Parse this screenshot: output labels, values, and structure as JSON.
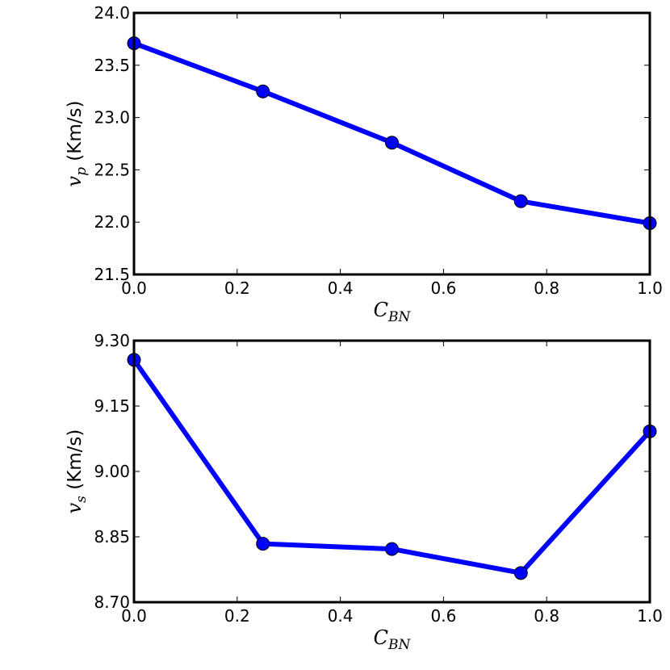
{
  "chart_data": [
    {
      "type": "line",
      "x": [
        0.0,
        0.25,
        0.5,
        0.75,
        1.0
      ],
      "series": [
        {
          "values": [
            23.71,
            23.25,
            22.76,
            22.2,
            21.99
          ],
          "color": "#0000ff"
        }
      ],
      "xlim": [
        0.0,
        1.0
      ],
      "ylim": [
        21.5,
        24.0
      ],
      "xticks": [
        "0.0",
        "0.2",
        "0.4",
        "0.6",
        "0.8",
        "1.0"
      ],
      "yticks": [
        "21.5",
        "22.0",
        "22.5",
        "23.0",
        "23.5",
        "24.0"
      ],
      "xlabel": {
        "main": "C",
        "sub": "BN"
      },
      "ylabel": {
        "main": "v",
        "sub": "p",
        "unit": "(Km/s)"
      },
      "grid": false
    },
    {
      "type": "line",
      "x": [
        0.0,
        0.25,
        0.5,
        0.75,
        1.0
      ],
      "series": [
        {
          "values": [
            9.256,
            8.834,
            8.822,
            8.767,
            9.092
          ],
          "color": "#0000ff"
        }
      ],
      "xlim": [
        0.0,
        1.0
      ],
      "ylim": [
        8.7,
        9.3
      ],
      "xticks": [
        "0.0",
        "0.2",
        "0.4",
        "0.6",
        "0.8",
        "1.0"
      ],
      "yticks": [
        "8.70",
        "8.85",
        "9.00",
        "9.15",
        "9.30"
      ],
      "xlabel": {
        "main": "C",
        "sub": "BN"
      },
      "ylabel": {
        "main": "v",
        "sub": "s",
        "unit": "(Km/s)"
      },
      "grid": false
    }
  ]
}
